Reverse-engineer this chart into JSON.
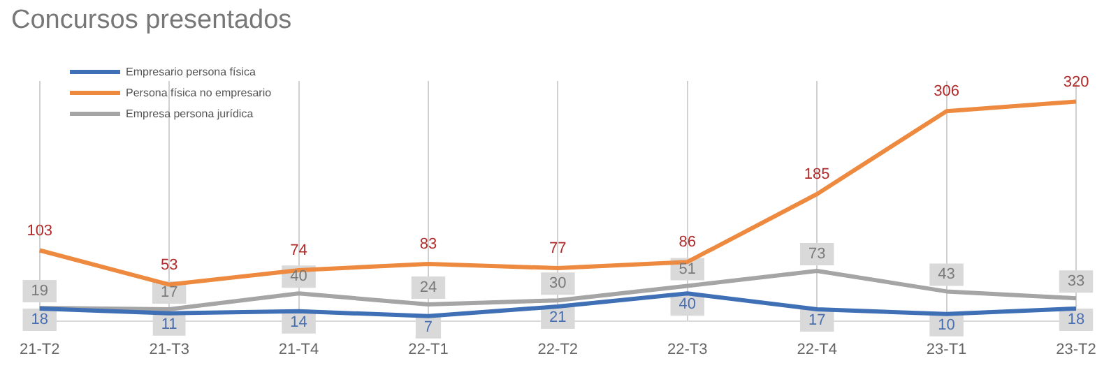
{
  "chart_data": {
    "type": "line",
    "title": "Concursos presentados",
    "categories": [
      "21-T2",
      "21-T3",
      "21-T4",
      "22-T1",
      "22-T2",
      "22-T3",
      "22-T4",
      "23-T1",
      "23-T2"
    ],
    "series": [
      {
        "name": "Empresario persona física",
        "color": "#3f6fb5",
        "values": [
          18,
          11,
          14,
          7,
          21,
          40,
          17,
          10,
          18
        ]
      },
      {
        "name": "Persona física no empresario",
        "color": "#ed8a3f",
        "values": [
          103,
          53,
          74,
          83,
          77,
          86,
          185,
          306,
          320
        ]
      },
      {
        "name": "Empresa persona jurídica",
        "color": "#a5a5a5",
        "values": [
          19,
          17,
          40,
          24,
          30,
          51,
          73,
          43,
          33
        ]
      }
    ],
    "tick_labels": "x",
    "data_labels": true,
    "grid": "x",
    "legend": "top left",
    "marker": "none",
    "line_style": "solid"
  }
}
